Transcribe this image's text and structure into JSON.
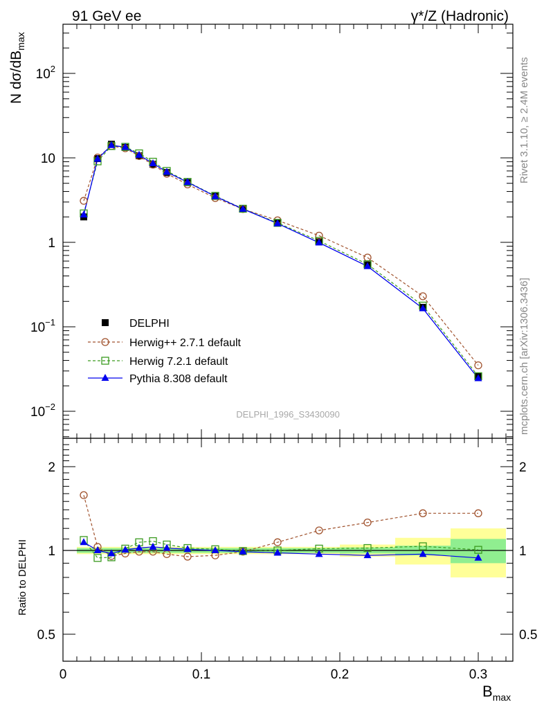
{
  "header": {
    "left": "91 GeV ee",
    "right": "γ*/Z (Hadronic)"
  },
  "side_labels": {
    "rivet": "Rivet 3.1.10, ≥ 2.4M events",
    "mcplots": "mcplots.cern.ch [arXiv:1306.3436]"
  },
  "watermark": "DELPHI_1996_S3430090",
  "colors": {
    "data": "#000000",
    "herwigpp": "#a0522d",
    "herwig7": "#3a9a1f",
    "pythia": "#0000ee",
    "band_inner": "#90ee90",
    "band_outer": "#ffff99"
  },
  "chart_data": [
    {
      "type": "scatter",
      "title": "",
      "xlabel": "B_max",
      "ylabel": "N dσ/dB_max",
      "xlim": [
        0,
        0.325
      ],
      "ylim": [
        0.005,
        400
      ],
      "yscale": "log",
      "x_ticks": [
        "0",
        "0.1",
        "0.2",
        "0.3"
      ],
      "y_ticks": [
        "10^-2",
        "10^-1",
        "1",
        "10",
        "10^2"
      ],
      "legend_position": "lower-left",
      "x": [
        0.015,
        0.025,
        0.035,
        0.045,
        0.055,
        0.065,
        0.075,
        0.09,
        0.11,
        0.13,
        0.155,
        0.185,
        0.22,
        0.26,
        0.3
      ],
      "series": [
        {
          "name": "DELPHI",
          "marker": "filled-square",
          "values": [
            2.0,
            9.8,
            14.5,
            13.3,
            10.6,
            8.4,
            6.7,
            5.1,
            3.5,
            2.5,
            1.7,
            1.02,
            0.54,
            0.17,
            0.026
          ]
        },
        {
          "name": "Herwig++ 2.7.1 default",
          "marker": "open-circle",
          "line": "dashed",
          "values": [
            3.1,
            10.1,
            13.8,
            13.0,
            10.5,
            8.3,
            6.5,
            4.85,
            3.35,
            2.48,
            1.82,
            1.2,
            0.66,
            0.23,
            0.035
          ]
        },
        {
          "name": "Herwig 7.2.1 default",
          "marker": "open-square",
          "line": "dashed",
          "values": [
            2.2,
            9.1,
            13.8,
            13.5,
            11.3,
            9.0,
            7.0,
            5.2,
            3.55,
            2.5,
            1.7,
            1.04,
            0.55,
            0.178,
            0.026
          ]
        },
        {
          "name": "Pythia 8.308 default",
          "marker": "filled-triangle",
          "line": "solid",
          "values": [
            2.12,
            9.7,
            14.1,
            13.4,
            10.8,
            8.6,
            6.8,
            5.15,
            3.5,
            2.48,
            1.67,
            0.99,
            0.52,
            0.165,
            0.0245
          ]
        }
      ]
    },
    {
      "type": "scatter",
      "title": "",
      "xlabel": "B_max",
      "ylabel": "Ratio to DELPHI",
      "xlim": [
        0,
        0.325
      ],
      "ylim": [
        0.4,
        2.5
      ],
      "yscale": "log",
      "y_ticks": [
        "0.5",
        "1",
        "2"
      ],
      "x": [
        0.015,
        0.025,
        0.035,
        0.045,
        0.055,
        0.065,
        0.075,
        0.09,
        0.11,
        0.13,
        0.155,
        0.185,
        0.22,
        0.26,
        0.3
      ],
      "x_edges": [
        0.01,
        0.02,
        0.03,
        0.04,
        0.05,
        0.06,
        0.07,
        0.08,
        0.1,
        0.12,
        0.14,
        0.17,
        0.2,
        0.24,
        0.28,
        0.32
      ],
      "band_inner_halfwidth": [
        0.02,
        0.02,
        0.02,
        0.02,
        0.02,
        0.02,
        0.02,
        0.02,
        0.02,
        0.02,
        0.02,
        0.02,
        0.025,
        0.04,
        0.1
      ],
      "band_outer_halfwidth": [
        0.03,
        0.03,
        0.03,
        0.03,
        0.03,
        0.03,
        0.03,
        0.03,
        0.03,
        0.03,
        0.03,
        0.03,
        0.05,
        0.11,
        0.2
      ],
      "series": [
        {
          "name": "Herwig++ 2.7.1 default",
          "values": [
            1.58,
            1.03,
            0.955,
            0.975,
            0.99,
            0.99,
            0.97,
            0.95,
            0.96,
            0.99,
            1.07,
            1.18,
            1.26,
            1.36,
            1.36
          ]
        },
        {
          "name": "Herwig 7.2.1 default",
          "values": [
            1.09,
            0.94,
            0.945,
            1.015,
            1.07,
            1.08,
            1.05,
            1.02,
            1.01,
            0.995,
            1.0,
            1.015,
            1.02,
            1.035,
            1.005
          ]
        },
        {
          "name": "Pythia 8.308 default",
          "values": [
            1.07,
            1.0,
            0.975,
            1.005,
            1.02,
            1.03,
            1.02,
            1.01,
            1.0,
            0.99,
            0.98,
            0.97,
            0.96,
            0.97,
            0.94
          ]
        }
      ]
    }
  ]
}
